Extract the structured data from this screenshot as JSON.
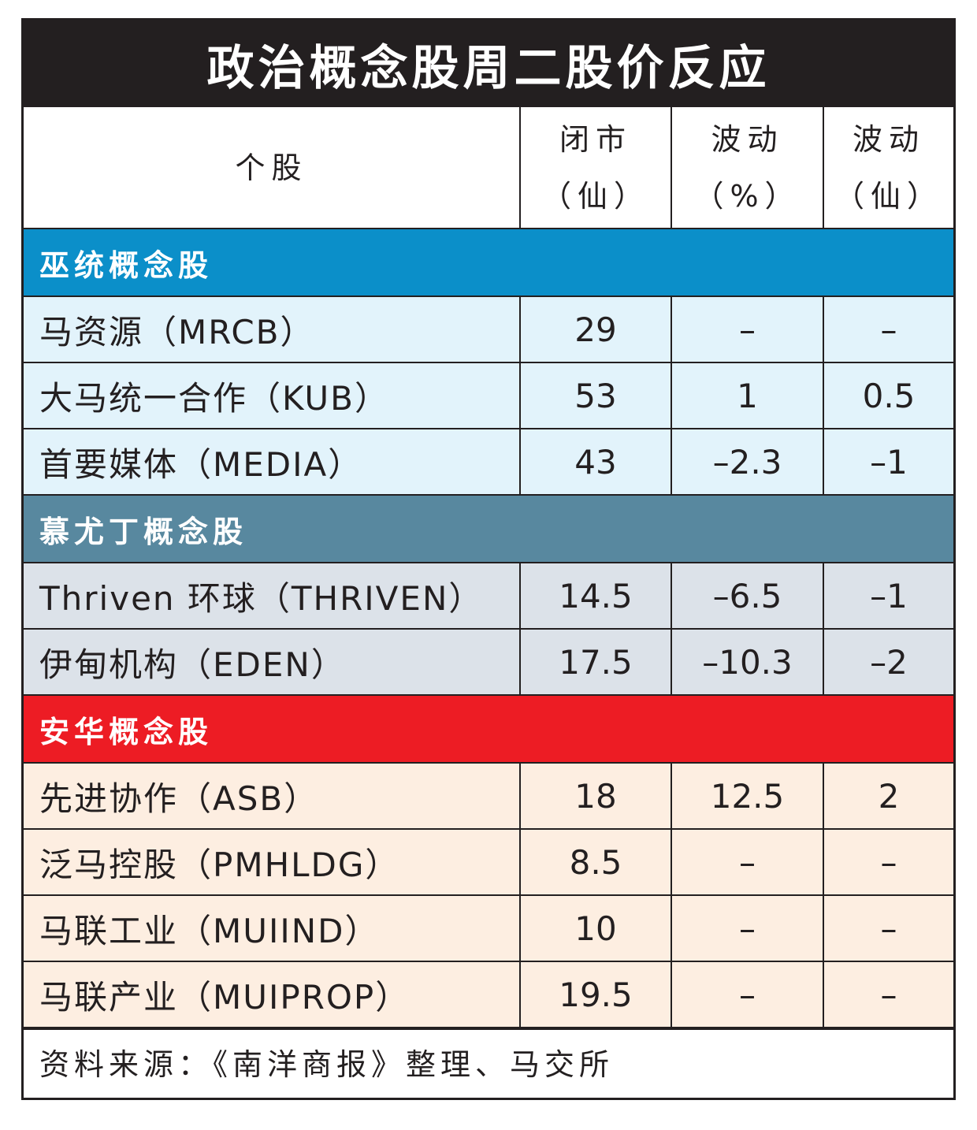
{
  "chart_data": {
    "type": "table",
    "title": "政治概念股周二股价反应",
    "columns": [
      {
        "line1": "个股",
        "line2": ""
      },
      {
        "line1": "闭市",
        "line2": "（仙）"
      },
      {
        "line1": "波动",
        "line2": "（%）"
      },
      {
        "line1": "波动",
        "line2": "（仙）"
      }
    ],
    "groups": [
      {
        "name": "巫统概念股",
        "color": "#0b8fc9",
        "rows": [
          {
            "stock": "马资源（MRCB）",
            "close": "29",
            "change_pct": "–",
            "change_sen": "–"
          },
          {
            "stock": "大马统一合作（KUB）",
            "close": "53",
            "change_pct": "1",
            "change_sen": "0.5"
          },
          {
            "stock": "首要媒体（MEDIA）",
            "close": "43",
            "change_pct": "–2.3",
            "change_sen": "–1"
          }
        ]
      },
      {
        "name": "慕尤丁概念股",
        "color": "#58889f",
        "rows": [
          {
            "stock": "Thriven 环球（THRIVEN）",
            "close": "14.5",
            "change_pct": "–6.5",
            "change_sen": "–1"
          },
          {
            "stock": "伊甸机构（EDEN）",
            "close": "17.5",
            "change_pct": "–10.3",
            "change_sen": "–2"
          }
        ]
      },
      {
        "name": "安华概念股",
        "color": "#ed1c24",
        "rows": [
          {
            "stock": "先进协作（ASB）",
            "close": "18",
            "change_pct": "12.5",
            "change_sen": "2"
          },
          {
            "stock": "泛马控股（PMHLDG）",
            "close": "8.5",
            "change_pct": "–",
            "change_sen": "–"
          },
          {
            "stock": "马联工业（MUIIND）",
            "close": "10",
            "change_pct": "–",
            "change_sen": "–"
          },
          {
            "stock": "马联产业（MUIPROP）",
            "close": "19.5",
            "change_pct": "–",
            "change_sen": "–"
          }
        ]
      }
    ],
    "source": "资料来源：《南洋商报》整理、马交所"
  }
}
